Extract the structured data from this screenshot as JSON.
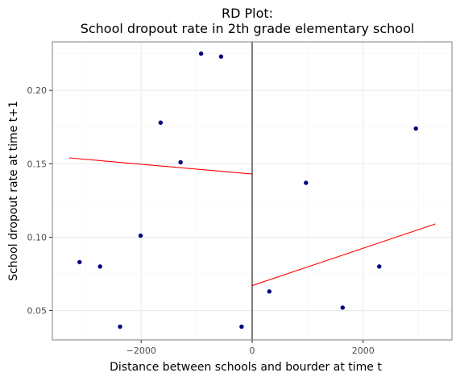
{
  "chart_data": {
    "type": "scatter",
    "title_line1": "RD Plot:",
    "title_line2": "School dropout rate in 2th grade elementary school",
    "xlabel": "Distance between schools and bourder at time t",
    "ylabel": "School dropout rate at time t+1",
    "xlim": [
      -3600,
      3600
    ],
    "ylim": [
      0.03,
      0.233
    ],
    "x_ticks": [
      -2000,
      0,
      2000
    ],
    "x_tick_labels": [
      "−2000",
      "0",
      "2000"
    ],
    "y_ticks": [
      0.05,
      0.1,
      0.15,
      0.2
    ],
    "y_tick_labels": [
      "0.05",
      "0.10",
      "0.15",
      "0.20"
    ],
    "x_minor_ticks": [
      -3000,
      -1000,
      1000,
      3000
    ],
    "y_minor_ticks": [
      0.075,
      0.125,
      0.175,
      0.225
    ],
    "grid": true,
    "cutoff": 0,
    "points": [
      {
        "x": -3110,
        "y": 0.083
      },
      {
        "x": -2740,
        "y": 0.08
      },
      {
        "x": -2380,
        "y": 0.039
      },
      {
        "x": -2010,
        "y": 0.101
      },
      {
        "x": -1650,
        "y": 0.178
      },
      {
        "x": -1290,
        "y": 0.151
      },
      {
        "x": -920,
        "y": 0.225
      },
      {
        "x": -560,
        "y": 0.223
      },
      {
        "x": -190,
        "y": 0.039
      },
      {
        "x": 310,
        "y": 0.063
      },
      {
        "x": 970,
        "y": 0.137
      },
      {
        "x": 1630,
        "y": 0.052
      },
      {
        "x": 2290,
        "y": 0.08
      },
      {
        "x": 2950,
        "y": 0.174
      }
    ],
    "fit_lines": [
      {
        "x": [
          -3300,
          0
        ],
        "y": [
          0.154,
          0.143
        ]
      },
      {
        "x": [
          0,
          3300
        ],
        "y": [
          0.067,
          0.109
        ]
      }
    ],
    "colors": {
      "points": "#00007f",
      "fit": "#ff0000",
      "cutoff": "#000000",
      "grid_major": "#ebebeb",
      "grid_minor": "#f5f5f5",
      "panel_border": "#7f7f7f"
    }
  }
}
